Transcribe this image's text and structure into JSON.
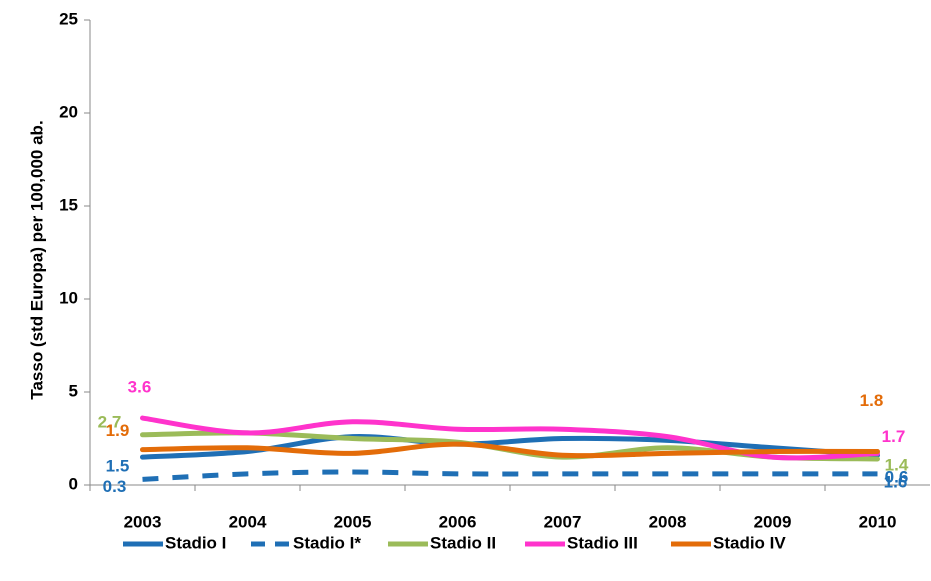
{
  "chart_data": {
    "type": "line",
    "y_label": "Tasso (std Europa) per 100,000 ab.",
    "categories": [
      "2003",
      "2004",
      "2005",
      "2006",
      "2007",
      "2008",
      "2009",
      "2010"
    ],
    "series": [
      {
        "name": "Stadio I",
        "color": "#1f6fb5",
        "dash": false,
        "values": [
          1.5,
          1.8,
          2.6,
          2.2,
          2.5,
          2.4,
          2.0,
          1.6
        ],
        "value_labels": [
          "1.5",
          null,
          null,
          null,
          null,
          null,
          null,
          "1.6"
        ]
      },
      {
        "name": "Stadio I*",
        "color": "#1f6fb5",
        "dash": true,
        "values": [
          0.3,
          0.6,
          0.7,
          0.6,
          0.6,
          0.6,
          0.6,
          0.6
        ],
        "value_labels": [
          "0.3",
          null,
          null,
          null,
          null,
          null,
          null,
          "0.6"
        ]
      },
      {
        "name": "Stadio II",
        "color": "#9bbb59",
        "dash": false,
        "values": [
          2.7,
          2.8,
          2.5,
          2.3,
          1.5,
          2.0,
          1.5,
          1.4
        ],
        "value_labels": [
          "2.7",
          null,
          null,
          null,
          null,
          null,
          null,
          "1.4"
        ]
      },
      {
        "name": "Stadio III",
        "color": "#ff33cc",
        "dash": false,
        "values": [
          3.6,
          2.8,
          3.4,
          3.0,
          3.0,
          2.6,
          1.5,
          1.7
        ],
        "value_labels": [
          "3.6",
          null,
          null,
          null,
          null,
          null,
          null,
          "1.7"
        ]
      },
      {
        "name": "Stadio IV",
        "color": "#e36c09",
        "dash": false,
        "values": [
          1.9,
          2.0,
          1.7,
          2.2,
          1.6,
          1.7,
          1.8,
          1.8
        ],
        "value_labels": [
          "1.9",
          null,
          null,
          null,
          null,
          null,
          null,
          "1.8"
        ]
      }
    ],
    "ylim": [
      0,
      25
    ],
    "yticks": [
      0,
      5,
      10,
      15,
      20,
      25
    ],
    "grid": false,
    "legend": "bottom"
  }
}
